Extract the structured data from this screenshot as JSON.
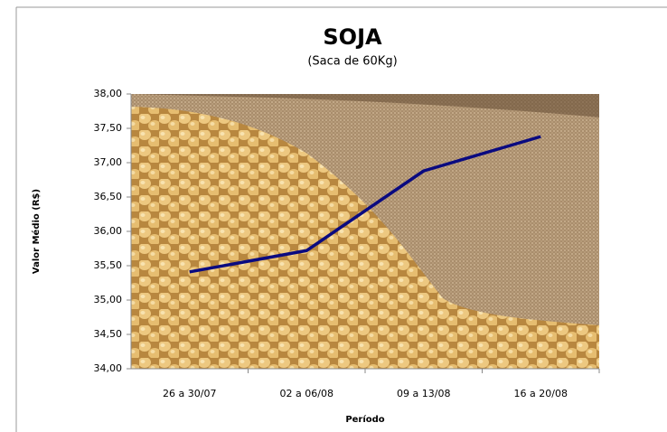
{
  "chart_data": {
    "type": "line",
    "title": "SOJA",
    "subtitle": "(Saca de 60Kg)",
    "y_label": "Valor Médio (R$)",
    "x_label": "Período",
    "categories": [
      "26 a 30/07",
      "02 a 06/08",
      "09 a 13/08",
      "16 a 20/08"
    ],
    "values": [
      35.41,
      35.72,
      36.88,
      37.38
    ],
    "color": "#0a0a80",
    "ylim": [
      34,
      38
    ],
    "yticks": [
      {
        "value": 34,
        "label": "34,00"
      },
      {
        "value": 34.5,
        "label": "34,50"
      },
      {
        "value": 35,
        "label": "35,00"
      },
      {
        "value": 35.5,
        "label": "35,50"
      },
      {
        "value": 36,
        "label": "36,00"
      },
      {
        "value": 36.5,
        "label": "36,50"
      },
      {
        "value": 37,
        "label": "37,00"
      },
      {
        "value": 37.5,
        "label": "37,50"
      },
      {
        "value": 38,
        "label": "38,00"
      }
    ],
    "grid": false
  }
}
